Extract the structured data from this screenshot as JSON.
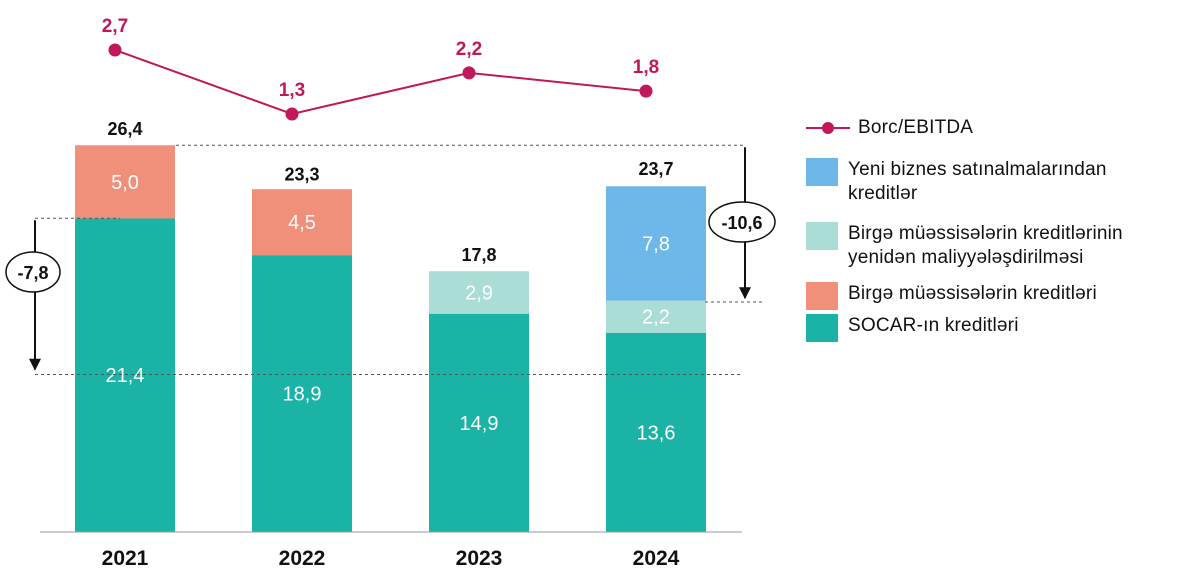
{
  "chart_data": {
    "type": "bar",
    "stacked": true,
    "categories": [
      "2021",
      "2022",
      "2023",
      "2024"
    ],
    "series": [
      {
        "name": "SOCAR-ın kreditləri",
        "color": "#1ab3a6",
        "values": [
          21.4,
          18.9,
          14.9,
          13.6
        ],
        "labels": [
          "21,4",
          "18,9",
          "14,9",
          "13,6"
        ]
      },
      {
        "name": "Birgə müəssisələrin kreditləri",
        "color": "#f0907a",
        "values": [
          5.0,
          4.5,
          null,
          null
        ],
        "labels": [
          "5,0",
          "4,5",
          "",
          ""
        ]
      },
      {
        "name": "Birgə müəssisələrin kreditlərinin yenidən maliyyələşdirilməsi",
        "color": "#a9ddd5",
        "values": [
          null,
          null,
          2.9,
          2.2
        ],
        "labels": [
          "",
          "",
          "2,9",
          "2,2"
        ]
      },
      {
        "name": "Yeni biznes satınalmalarından kreditlər",
        "color": "#6db8e8",
        "values": [
          null,
          null,
          null,
          7.8
        ],
        "labels": [
          "",
          "",
          "",
          "7,8"
        ]
      }
    ],
    "totals": [
      26.4,
      23.3,
      17.8,
      23.7
    ],
    "total_labels": [
      "26,4",
      "23,3",
      "17,8",
      "23,7"
    ],
    "line_series": {
      "name": "Borc/EBITDA",
      "color": "#c0185a",
      "values": [
        2.7,
        1.3,
        2.2,
        1.8
      ],
      "labels": [
        "2,7",
        "1,3",
        "2,2",
        "1,8"
      ]
    },
    "annotations": [
      {
        "category": "2021",
        "text": "-7,8",
        "from": 26.4,
        "to": 18.6,
        "side": "left"
      },
      {
        "category": "2024",
        "text": "-10,6",
        "from": 26.4,
        "to": 15.8,
        "side": "right"
      }
    ],
    "ylim": [
      0,
      30
    ],
    "grid": false,
    "legend_position": "right"
  },
  "legend": {
    "items": [
      {
        "label": "Borc/EBITDA",
        "kind": "line",
        "color": "#c0185a"
      },
      {
        "label": "Yeni biznes satınalmalarından kreditlər",
        "kind": "box",
        "color": "#6db8e8"
      },
      {
        "label": "Birgə müəssisələrin kreditlərinin yenidən maliyyələşdirilməsi",
        "kind": "box",
        "color": "#a9ddd5"
      },
      {
        "label": "Birgə müəssisələrin kreditləri",
        "kind": "box",
        "color": "#f0907a"
      },
      {
        "label": "SOCAR-ın kreditləri",
        "kind": "box",
        "color": "#1ab3a6"
      }
    ]
  }
}
